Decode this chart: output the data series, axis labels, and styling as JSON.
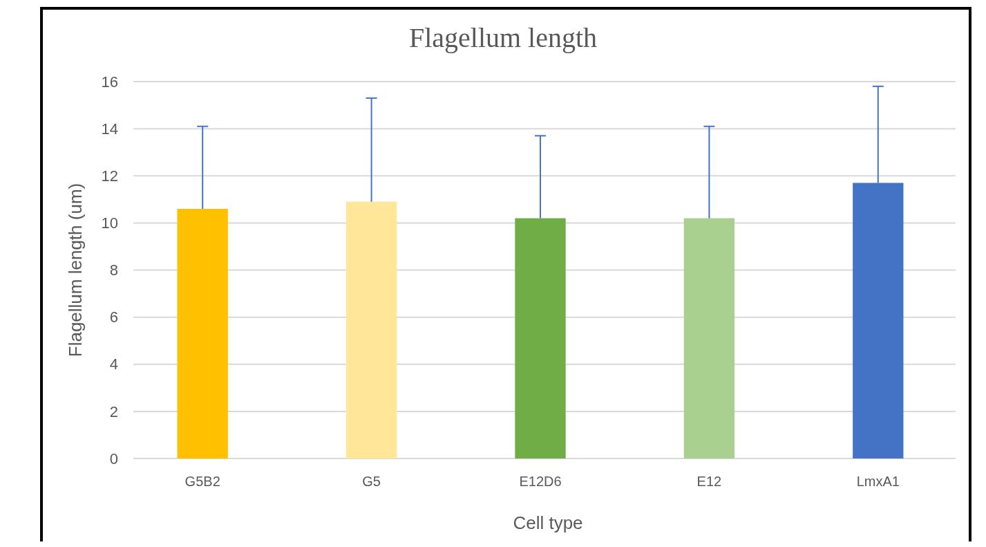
{
  "chart_data": {
    "type": "bar",
    "title": "Flagellum length",
    "xlabel": "Cell type",
    "ylabel": "Flagellum length (um)",
    "categories": [
      "G5B2",
      "G5",
      "E12D6",
      "E12",
      "LmxA1"
    ],
    "values": [
      10.6,
      10.9,
      10.2,
      10.2,
      11.7
    ],
    "colors": [
      "#ffc000",
      "#ffe699",
      "#70ad47",
      "#a9d08e",
      "#4472c4"
    ],
    "errors": [
      [
        10.6,
        14.1
      ],
      [
        10.9,
        15.3
      ],
      [
        10.2,
        13.7
      ],
      [
        10.2,
        14.1
      ],
      [
        11.7,
        15.8
      ]
    ],
    "ylim": [
      0,
      16
    ],
    "yticks": [
      0,
      2,
      4,
      6,
      8,
      10,
      12,
      14,
      16
    ],
    "grid": "y"
  }
}
